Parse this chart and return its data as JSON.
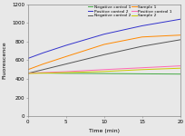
{
  "title": "",
  "xlabel": "Time (min)",
  "ylabel": "Fluorescence",
  "xlim": [
    0,
    20
  ],
  "ylim": [
    0,
    1200
  ],
  "yticks": [
    0,
    200,
    400,
    600,
    800,
    1000,
    1200
  ],
  "xticks": [
    0,
    5,
    10,
    15,
    20
  ],
  "lines": [
    {
      "label": "Negative control 1",
      "color": "#44aa44",
      "x": [
        0,
        2,
        5,
        10,
        15,
        20
      ],
      "y": [
        465,
        463,
        460,
        458,
        455,
        452
      ]
    },
    {
      "label": "Positive control 2",
      "color": "#3333cc",
      "x": [
        0,
        2,
        5,
        10,
        15,
        20
      ],
      "y": [
        620,
        680,
        760,
        880,
        970,
        1040
      ]
    },
    {
      "label": "Negative control 2",
      "color": "#555555",
      "x": [
        0,
        2,
        5,
        10,
        15,
        20
      ],
      "y": [
        460,
        500,
        560,
        660,
        750,
        820
      ]
    },
    {
      "label": "Sample 1",
      "color": "#ff8800",
      "x": [
        0,
        2,
        5,
        10,
        15,
        20
      ],
      "y": [
        500,
        560,
        640,
        770,
        850,
        870
      ]
    },
    {
      "label": "Positive control 1",
      "color": "#ff69b4",
      "x": [
        0,
        2,
        5,
        10,
        15,
        20
      ],
      "y": [
        462,
        468,
        478,
        500,
        520,
        540
      ]
    },
    {
      "label": "Sample 2",
      "color": "#cccc00",
      "x": [
        0,
        2,
        5,
        10,
        15,
        20
      ],
      "y": [
        458,
        462,
        468,
        480,
        500,
        515
      ]
    }
  ],
  "legend_cols": 2,
  "bg_color": "#e8e8e8",
  "plot_bg_color": "#e8e8e8",
  "fontsize_axis_label": 4.5,
  "fontsize_tick": 4,
  "fontsize_legend": 3.2
}
